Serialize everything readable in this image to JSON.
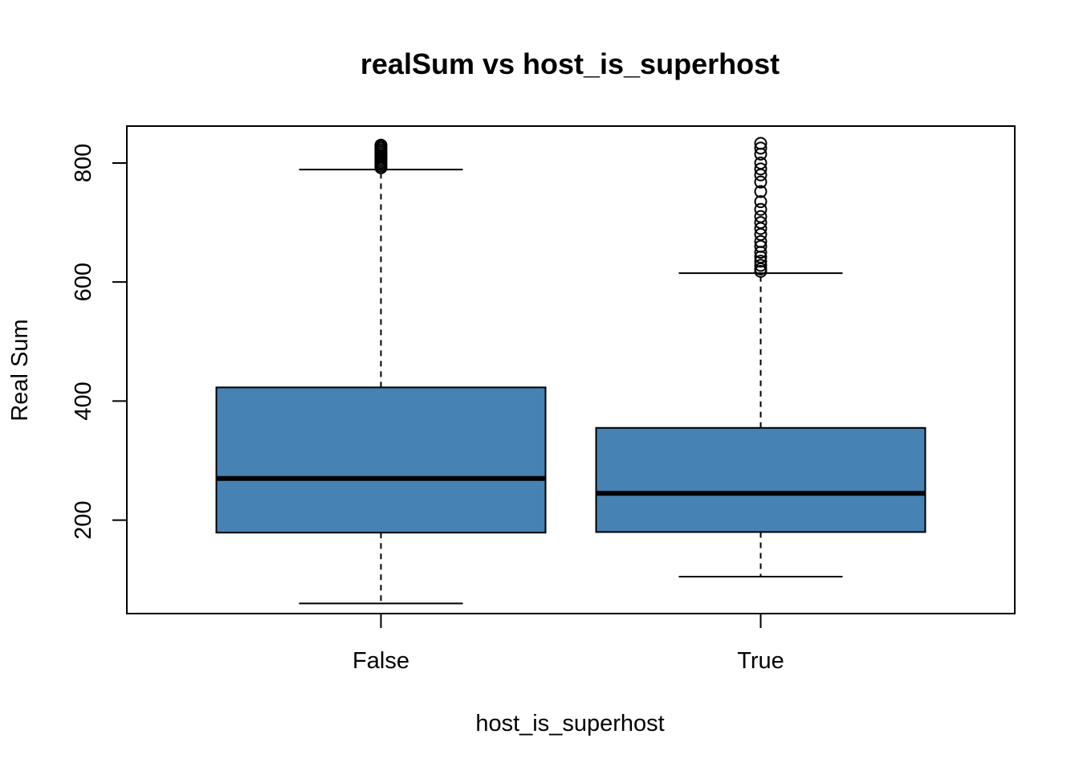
{
  "chart_data": {
    "type": "box",
    "title": "realSum vs host_is_superhost",
    "xlabel": "host_is_superhost",
    "ylabel": "Real Sum",
    "categories": [
      "False",
      "True"
    ],
    "ylim": [
      43,
      862
    ],
    "yticks": [
      200,
      400,
      600,
      800
    ],
    "grid": false,
    "box_color": "#4682B4",
    "boxes": [
      {
        "category": "False",
        "whisker_low": 60,
        "q1": 179,
        "median": 270,
        "q3": 423,
        "whisker_high": 789,
        "outliers": [
          792,
          795,
          798,
          801,
          804,
          807,
          810,
          813,
          816,
          819,
          822,
          825,
          828,
          830
        ]
      },
      {
        "category": "True",
        "whisker_low": 105,
        "q1": 180,
        "median": 245,
        "q3": 355,
        "whisker_high": 615,
        "outliers": [
          618,
          622,
          628,
          635,
          642,
          650,
          660,
          668,
          680,
          690,
          700,
          710,
          722,
          735,
          752,
          768,
          780,
          790,
          800,
          815,
          825,
          833
        ]
      }
    ]
  }
}
